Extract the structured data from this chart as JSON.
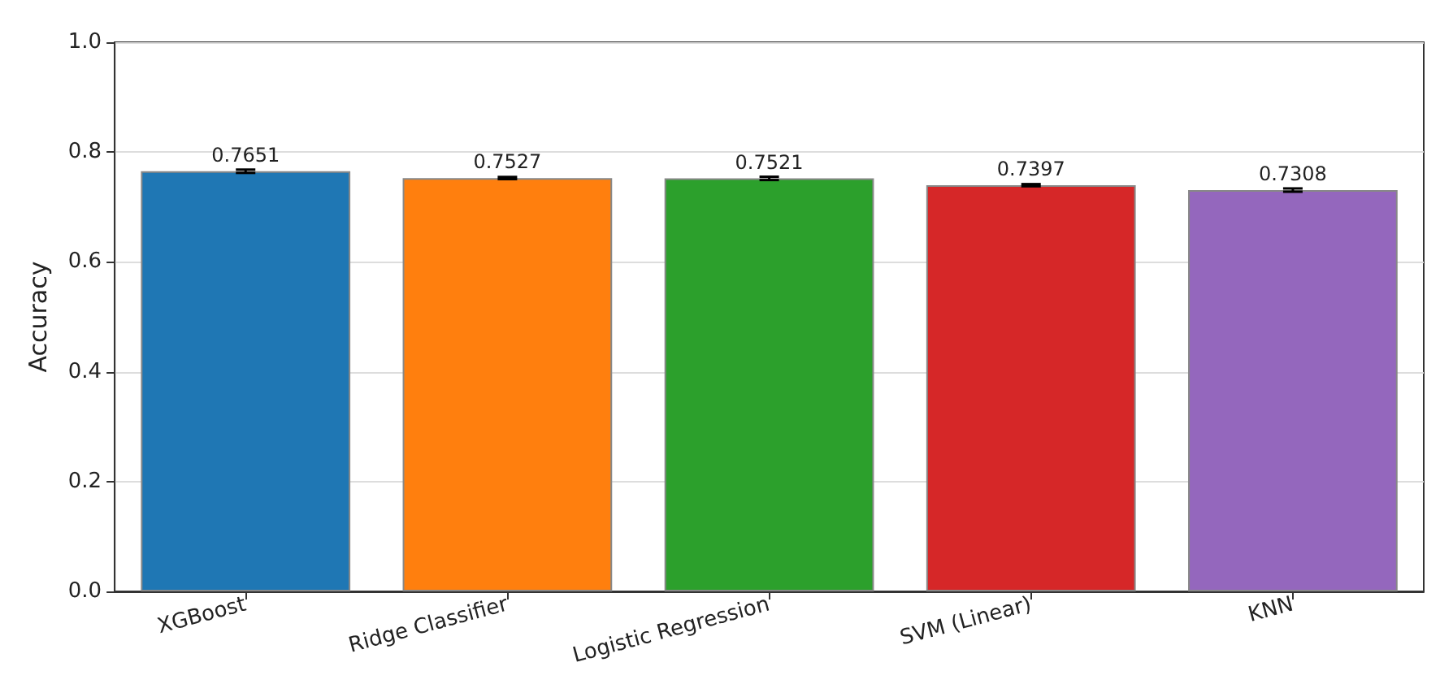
{
  "chart_data": {
    "type": "bar",
    "ylabel": "Accuracy",
    "categories": [
      "XGBoost",
      "Ridge Classifier",
      "Logistic Regression",
      "SVM (Linear)",
      "KNN"
    ],
    "values": [
      0.7651,
      0.7527,
      0.7521,
      0.7397,
      0.7308
    ],
    "colors": [
      "#1f77b4",
      "#ff7f0e",
      "#2ca02c",
      "#d62728",
      "#9467bd"
    ],
    "errors": [
      0.003,
      0.002,
      0.003,
      0.002,
      0.003
    ],
    "data_labels": true,
    "ylim": [
      0,
      1
    ],
    "yticks": [
      {
        "value": 0,
        "label": "0.0"
      },
      0.2,
      0.4,
      0.6,
      0.8,
      {
        "value": 1,
        "label": "1.0"
      }
    ],
    "grid": "y"
  }
}
